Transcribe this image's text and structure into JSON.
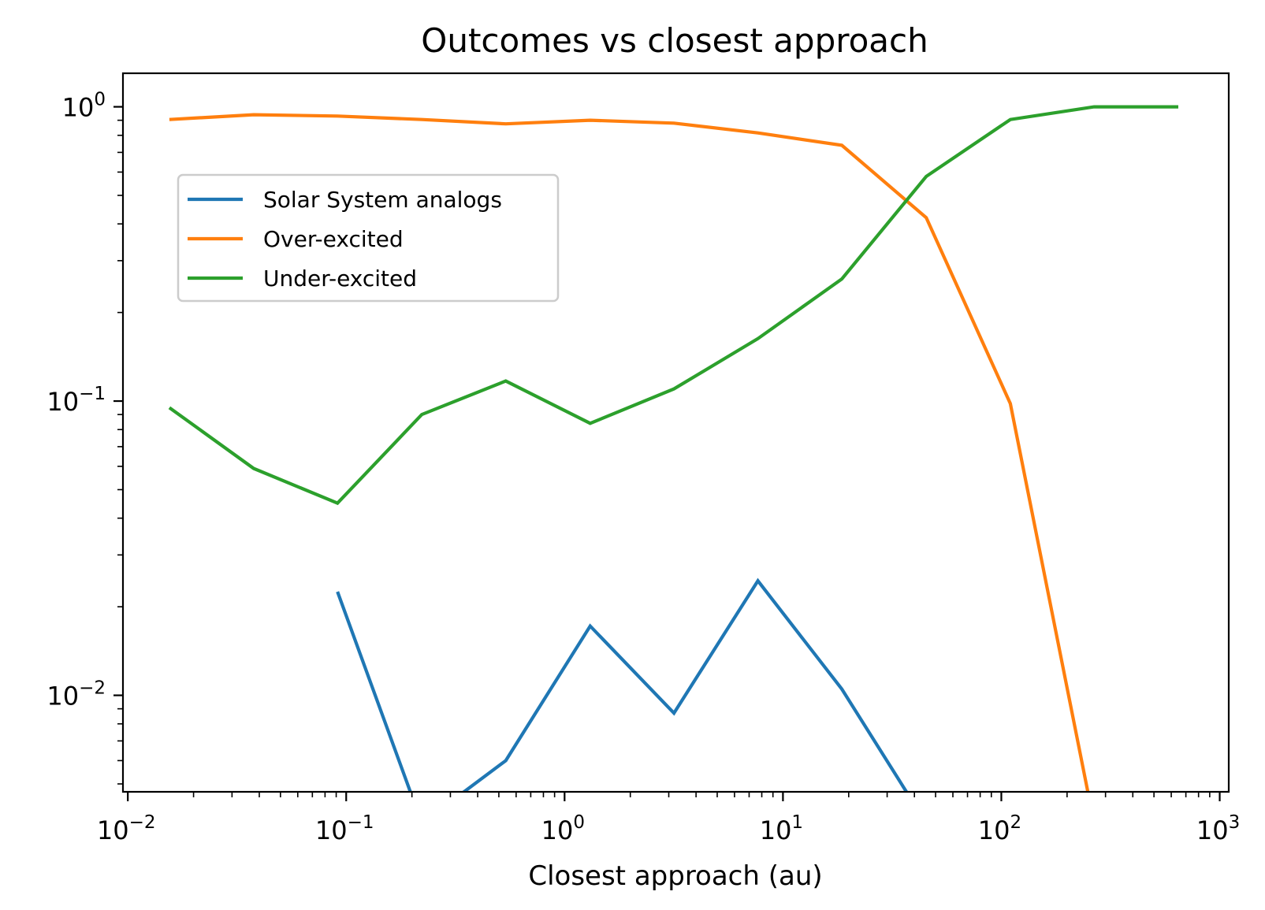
{
  "chart_data": {
    "type": "line",
    "title": "Outcomes vs closest approach",
    "xlabel": "Closest approach (au)",
    "ylabel": "",
    "xscale": "log",
    "yscale": "log",
    "xlim": [
      0.0095,
      1100
    ],
    "ylim": [
      0.0047,
      1.3
    ],
    "x_ticks": [
      {
        "base": "10",
        "exp": "−2",
        "value": 0.01
      },
      {
        "base": "10",
        "exp": "−1",
        "value": 0.1
      },
      {
        "base": "10",
        "exp": "0",
        "value": 1
      },
      {
        "base": "10",
        "exp": "1",
        "value": 10
      },
      {
        "base": "10",
        "exp": "2",
        "value": 100
      },
      {
        "base": "10",
        "exp": "3",
        "value": 1000
      }
    ],
    "y_ticks": [
      {
        "base": "10",
        "exp": "0",
        "value": 1
      },
      {
        "base": "10",
        "exp": "−1",
        "value": 0.1
      },
      {
        "base": "10",
        "exp": "−2",
        "value": 0.01
      }
    ],
    "x": [
      0.0155,
      0.0377,
      0.0912,
      0.222,
      0.538,
      1.31,
      3.17,
      7.68,
      18.6,
      45.3,
      110,
      266,
      646
    ],
    "series": [
      {
        "name": "Solar System analogs",
        "color": "#1f77b4",
        "values": [
          null,
          null,
          0.0225,
          0,
          0.006,
          0.0172,
          0.0087,
          0.0245,
          0.0105,
          0,
          0,
          0,
          0
        ]
      },
      {
        "name": "Over-excited",
        "color": "#ff7f0e",
        "values": [
          0.905,
          0.94,
          0.93,
          0.905,
          0.875,
          0.9,
          0.88,
          0.815,
          0.74,
          0.42,
          0.098,
          0,
          0
        ]
      },
      {
        "name": "Under-excited",
        "color": "#2ca02c",
        "values": [
          0.095,
          0.059,
          0.045,
          0.09,
          0.117,
          0.084,
          0.11,
          0.163,
          0.26,
          0.58,
          0.905,
          1.0,
          1.0
        ]
      }
    ],
    "legend_position": "upper-left",
    "grid": false
  }
}
